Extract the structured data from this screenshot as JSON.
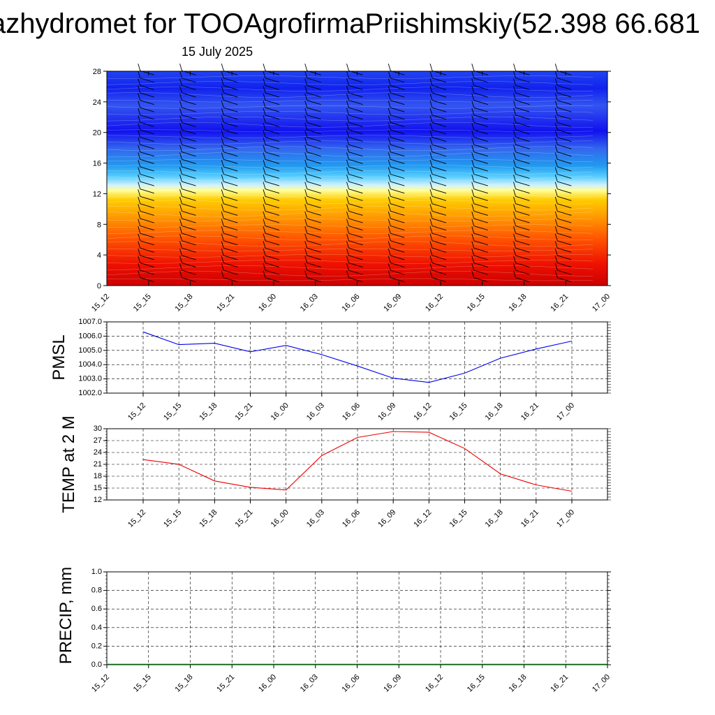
{
  "title": "azhydromet for TOOAgrofirmaPriishimskiy(52.398 66.681",
  "subtitle": "15 July 2025",
  "time_labels": [
    "15_12",
    "15_15",
    "15_18",
    "15_21",
    "16_00",
    "16_03",
    "16_06",
    "16_09",
    "16_12",
    "16_15",
    "16_18",
    "16_21",
    "17_00"
  ],
  "chart_data": [
    {
      "type": "heatmap",
      "name": "",
      "ylim": [
        0,
        28
      ],
      "yticks": [
        0,
        4,
        8,
        12,
        16,
        20,
        24,
        28
      ],
      "xlabels": [
        "15_12",
        "15_15",
        "15_18",
        "15_21",
        "16_00",
        "16_03",
        "16_06",
        "16_09",
        "16_12",
        "16_15",
        "16_18",
        "16_21",
        "17_00"
      ],
      "colorscale": [
        "#cc0000",
        "#ff3300",
        "#ff9900",
        "#ffdd00",
        "#ffffcc",
        "#33ccff",
        "#3377ff",
        "#1111ee"
      ],
      "wind_barbs": true,
      "grid": false
    },
    {
      "type": "line",
      "ylabel": "PMSL",
      "ylim": [
        1002.0,
        1007.0
      ],
      "yticks": [
        "1002.0",
        "1003.0",
        "1004.0",
        "1005.0",
        "1006.0",
        "1007.0"
      ],
      "x": [
        "15_12",
        "15_15",
        "15_18",
        "15_21",
        "16_00",
        "16_03",
        "16_06",
        "16_09",
        "16_12",
        "16_15",
        "16_18",
        "16_21",
        "17_00"
      ],
      "values": [
        1006.3,
        1005.4,
        1005.5,
        1004.9,
        1005.35,
        1004.7,
        1003.9,
        1003.05,
        1002.75,
        1003.4,
        1004.45,
        1005.1,
        1005.65
      ],
      "color": "#0000ee",
      "grid": true
    },
    {
      "type": "line",
      "ylabel": "TEMP at 2 M",
      "ylim": [
        12,
        30
      ],
      "yticks": [
        "12",
        "15",
        "18",
        "21",
        "24",
        "27",
        "30"
      ],
      "x": [
        "15_12",
        "15_15",
        "15_18",
        "15_21",
        "16_00",
        "16_03",
        "16_06",
        "16_09",
        "16_12",
        "16_15",
        "16_18",
        "16_21",
        "17_00"
      ],
      "values": [
        22.2,
        21.0,
        16.8,
        15.2,
        14.5,
        23.2,
        27.8,
        29.3,
        29.1,
        25.0,
        18.6,
        15.8,
        14.2
      ],
      "color": "#ee0000",
      "grid": true
    },
    {
      "type": "line",
      "ylabel": "PRECIP, mm",
      "ylim": [
        0.0,
        1.0
      ],
      "yticks": [
        "0.0",
        "0.2",
        "0.4",
        "0.6",
        "0.8",
        "1.0"
      ],
      "x": [
        "15_12",
        "15_15",
        "15_18",
        "15_21",
        "16_00",
        "16_03",
        "16_06",
        "16_09",
        "16_12",
        "16_15",
        "16_18",
        "16_21",
        "17_00"
      ],
      "values": [
        0,
        0,
        0,
        0,
        0,
        0,
        0,
        0,
        0,
        0,
        0,
        0,
        0
      ],
      "color": "#006600",
      "grid": true
    }
  ]
}
